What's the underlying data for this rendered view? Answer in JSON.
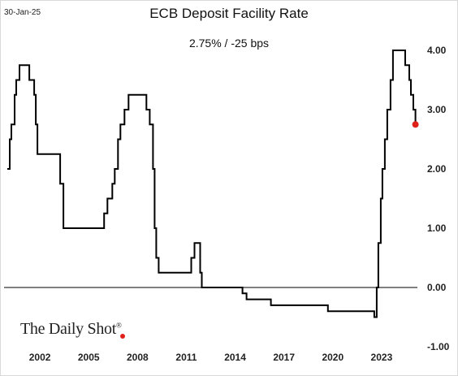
{
  "header": {
    "date": "30-Jan-25",
    "title": "ECB Deposit Facility Rate",
    "subtitle": "2.75%  /  -25 bps"
  },
  "branding": {
    "logo_text": "The Daily Shot",
    "logo_mark": "®"
  },
  "colors": {
    "line": "#000000",
    "marker": "#e0201b",
    "zero_line": "#000000"
  },
  "chart_data": {
    "type": "line",
    "title": "ECB Deposit Facility Rate",
    "subtitle": "2.75%  /  -25 bps",
    "x_ticks": [
      "2002",
      "2005",
      "2008",
      "2011",
      "2014",
      "2017",
      "2020",
      "2023"
    ],
    "y_ticks": [
      "4.00",
      "3.00",
      "2.00",
      "1.00",
      "0.00",
      "-1.00"
    ],
    "xlim": [
      1999.8,
      2025.2
    ],
    "ylim": [
      -1.0,
      4.0
    ],
    "y_axis_side": "right",
    "zero_line": true,
    "grid": false,
    "step": true,
    "series": [
      {
        "x": [
          2000.0,
          2000.15,
          2000.25,
          2000.45,
          2000.55,
          2000.75,
          2001.35,
          2001.65,
          2001.75,
          2001.85,
          2003.25,
          2003.45,
          2005.95,
          2006.15,
          2006.45,
          2006.6,
          2006.8,
          2006.95,
          2007.2,
          2007.45,
          2008.55,
          2008.75,
          2008.95,
          2009.05,
          2009.15,
          2009.3,
          2011.3,
          2011.5,
          2011.85,
          2011.95,
          2012.5,
          2014.45,
          2014.7,
          2016.2,
          2019.7,
          2022.55,
          2022.7,
          2022.8,
          2022.95,
          2023.05,
          2023.2,
          2023.35,
          2023.55,
          2023.7,
          2024.45,
          2024.7,
          2024.8,
          2024.95
        ],
        "y": [
          2.0,
          2.5,
          2.75,
          3.25,
          3.5,
          3.75,
          3.5,
          3.25,
          2.75,
          2.25,
          1.75,
          1.0,
          1.25,
          1.5,
          1.75,
          2.0,
          2.5,
          2.75,
          3.0,
          3.25,
          3.0,
          2.75,
          2.0,
          1.0,
          0.5,
          0.25,
          0.5,
          0.75,
          0.25,
          0.0,
          0.0,
          -0.1,
          -0.2,
          -0.3,
          -0.4,
          -0.5,
          0.0,
          0.75,
          1.5,
          2.0,
          2.5,
          3.0,
          3.5,
          4.0,
          3.75,
          3.5,
          3.25,
          3.0
        ],
        "end_x": 2025.08
      }
    ],
    "last_point": {
      "x": 2025.08,
      "y": 2.75
    }
  }
}
